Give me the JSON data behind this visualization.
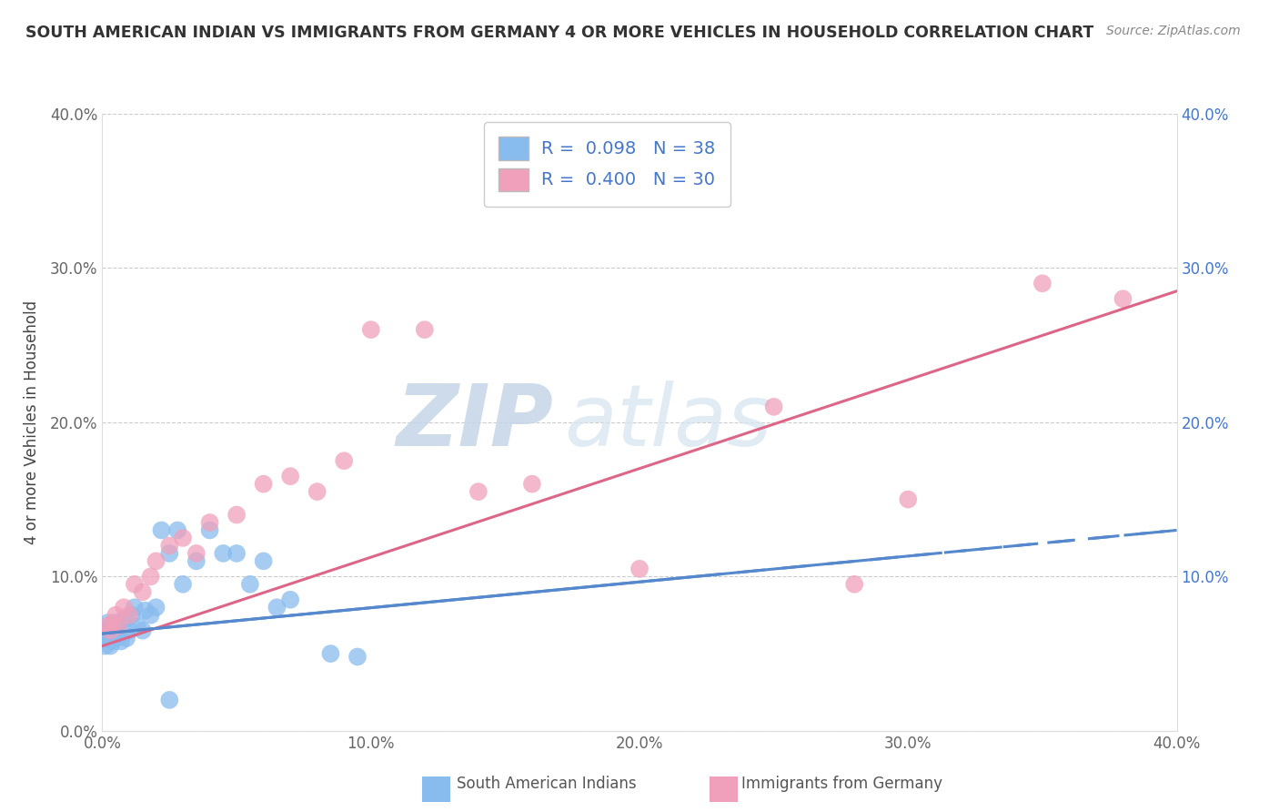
{
  "title": "SOUTH AMERICAN INDIAN VS IMMIGRANTS FROM GERMANY 4 OR MORE VEHICLES IN HOUSEHOLD CORRELATION CHART",
  "source": "Source: ZipAtlas.com",
  "ylabel": "4 or more Vehicles in Household",
  "xlim": [
    0.0,
    0.4
  ],
  "ylim": [
    0.0,
    0.4
  ],
  "xtick_labels": [
    "0.0%",
    "10.0%",
    "20.0%",
    "30.0%",
    "40.0%"
  ],
  "xtick_vals": [
    0.0,
    0.1,
    0.2,
    0.3,
    0.4
  ],
  "ytick_labels": [
    "0.0%",
    "10.0%",
    "20.0%",
    "30.0%",
    "40.0%"
  ],
  "ytick_vals": [
    0.0,
    0.1,
    0.2,
    0.3,
    0.4
  ],
  "right_ytick_labels": [
    "10.0%",
    "20.0%",
    "30.0%",
    "40.0%"
  ],
  "right_ytick_vals": [
    0.1,
    0.2,
    0.3,
    0.4
  ],
  "legend_r1": "R =  0.098",
  "legend_n1": "N = 38",
  "legend_r2": "R =  0.400",
  "legend_n2": "N = 30",
  "series1_color": "#88BBEE",
  "series2_color": "#F0A0BB",
  "series1_label": "South American Indians",
  "series2_label": "Immigrants from Germany",
  "trend1_color": "#5588CC",
  "trend2_color": "#DD6688",
  "watermark_zip": "ZIP",
  "watermark_atlas": "atlas",
  "background_color": "#FFFFFF",
  "series1_x": [
    0.001,
    0.001,
    0.002,
    0.002,
    0.003,
    0.003,
    0.004,
    0.004,
    0.005,
    0.005,
    0.006,
    0.006,
    0.007,
    0.008,
    0.009,
    0.01,
    0.011,
    0.012,
    0.013,
    0.015,
    0.016,
    0.018,
    0.02,
    0.022,
    0.025,
    0.028,
    0.03,
    0.035,
    0.04,
    0.045,
    0.05,
    0.055,
    0.06,
    0.065,
    0.07,
    0.085,
    0.095,
    0.025
  ],
  "series1_y": [
    0.055,
    0.06,
    0.065,
    0.07,
    0.055,
    0.06,
    0.058,
    0.065,
    0.06,
    0.07,
    0.062,
    0.068,
    0.058,
    0.072,
    0.06,
    0.065,
    0.075,
    0.08,
    0.068,
    0.065,
    0.078,
    0.075,
    0.08,
    0.13,
    0.115,
    0.13,
    0.095,
    0.11,
    0.13,
    0.115,
    0.115,
    0.095,
    0.11,
    0.08,
    0.085,
    0.05,
    0.048,
    0.02
  ],
  "series2_x": [
    0.002,
    0.003,
    0.004,
    0.005,
    0.006,
    0.008,
    0.01,
    0.012,
    0.015,
    0.018,
    0.02,
    0.025,
    0.03,
    0.035,
    0.04,
    0.05,
    0.06,
    0.07,
    0.08,
    0.09,
    0.1,
    0.12,
    0.14,
    0.16,
    0.2,
    0.25,
    0.3,
    0.35,
    0.28,
    0.38
  ],
  "series2_y": [
    0.068,
    0.065,
    0.07,
    0.075,
    0.068,
    0.08,
    0.075,
    0.095,
    0.09,
    0.1,
    0.11,
    0.12,
    0.125,
    0.115,
    0.135,
    0.14,
    0.16,
    0.165,
    0.155,
    0.175,
    0.26,
    0.26,
    0.155,
    0.16,
    0.105,
    0.21,
    0.15,
    0.29,
    0.095,
    0.28
  ],
  "trend1_x0": 0.0,
  "trend1_y0": 0.063,
  "trend1_x1": 0.4,
  "trend1_y1": 0.13,
  "trend2_x0": 0.0,
  "trend2_y0": 0.055,
  "trend2_x1": 0.4,
  "trend2_y1": 0.285
}
